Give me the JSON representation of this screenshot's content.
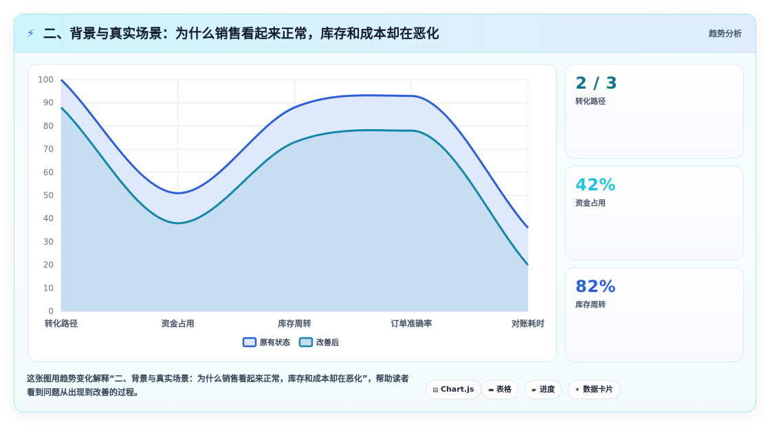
{
  "header": {
    "icon": "lightning-icon",
    "title": "二、背景与真实场景：为什么销售看起来正常，库存和成本却在恶化",
    "tag": "趋势分析"
  },
  "chart_data": {
    "type": "line",
    "categories": [
      "转化路径",
      "资金占用",
      "库存周转",
      "订单准确率",
      "对账耗时"
    ],
    "series": [
      {
        "name": "原有状态",
        "values": [
          100,
          51,
          88,
          93,
          36
        ],
        "color": "#2b5fd9",
        "fill": "#dde6fb"
      },
      {
        "name": "改善后",
        "values": [
          88,
          38,
          73,
          78,
          20
        ],
        "color": "#1287a8",
        "fill": "#c5dcf1"
      }
    ],
    "ylim": [
      0,
      100
    ],
    "yticks": [
      0,
      10,
      20,
      30,
      40,
      50,
      60,
      70,
      80,
      90,
      100
    ],
    "smooth": true,
    "filled": true,
    "grid": true,
    "legend": "bottom"
  },
  "stats": [
    {
      "value": "2 / 3",
      "label": "转化路径",
      "color": "#0e7490"
    },
    {
      "value": "42%",
      "label": "资金占用",
      "color": "#22c3dd"
    },
    {
      "value": "82%",
      "label": "库存周转",
      "color": "#2b5fd9"
    }
  ],
  "description": "这张图用趋势变化解释“二、背景与真实场景：为什么销售看起来正常，库存和成本却在恶化”，帮助读者看到问题从出现到改善的过程。",
  "chips": [
    {
      "icon": "chart-icon",
      "glyph": "▤",
      "label": "Chart.js"
    },
    {
      "icon": "table-icon",
      "glyph": "▬",
      "label": "表格"
    },
    {
      "icon": "progress-icon",
      "glyph": "▰",
      "label": "进度"
    },
    {
      "icon": "sparkle-icon",
      "glyph": "✦",
      "label": "数据卡片"
    }
  ]
}
